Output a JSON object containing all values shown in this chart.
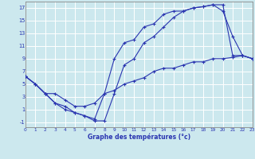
{
  "xlabel": "Graphe des températures (°c)",
  "bg_color": "#cce8ee",
  "line_color": "#2a35b0",
  "grid_color": "#ffffff",
  "x_ticks": [
    0,
    1,
    2,
    3,
    4,
    5,
    6,
    7,
    8,
    9,
    10,
    11,
    12,
    13,
    14,
    15,
    16,
    17,
    18,
    19,
    20,
    21,
    22,
    23
  ],
  "y_ticks": [
    -1,
    1,
    3,
    5,
    7,
    9,
    11,
    13,
    15,
    17
  ],
  "xlim": [
    0,
    23
  ],
  "ylim": [
    -1.8,
    18
  ],
  "line1_x": [
    0,
    1,
    2,
    3,
    4,
    5,
    6,
    7,
    8,
    9,
    10,
    11,
    12,
    13,
    14,
    15,
    16,
    17,
    18,
    19,
    20,
    21,
    22,
    23
  ],
  "line1_y": [
    6.2,
    5.0,
    3.5,
    3.5,
    2.5,
    1.5,
    1.5,
    2.0,
    3.5,
    4.0,
    5.0,
    5.5,
    6.0,
    7.0,
    7.5,
    7.5,
    8.0,
    8.5,
    8.5,
    9.0,
    9.0,
    9.2,
    9.5,
    9.0
  ],
  "line2_x": [
    0,
    1,
    2,
    3,
    4,
    5,
    6,
    7,
    8,
    9,
    10,
    11,
    12,
    13,
    14,
    15,
    16,
    17,
    18,
    19,
    20,
    21,
    22,
    23
  ],
  "line2_y": [
    6.2,
    5.0,
    3.5,
    2.0,
    1.0,
    0.5,
    0.0,
    -0.5,
    3.5,
    9.0,
    11.5,
    12.0,
    14.0,
    14.5,
    16.0,
    16.5,
    16.5,
    17.0,
    17.2,
    17.5,
    16.5,
    12.5,
    9.5,
    9.0
  ],
  "line3_x": [
    0,
    1,
    2,
    3,
    4,
    5,
    6,
    7,
    8,
    9,
    10,
    11,
    12,
    13,
    14,
    15,
    16,
    17,
    18,
    19,
    20,
    21,
    22,
    23
  ],
  "line3_y": [
    6.2,
    5.0,
    3.5,
    2.0,
    1.5,
    0.5,
    0.0,
    -0.8,
    -0.8,
    3.5,
    8.0,
    9.0,
    11.5,
    12.5,
    14.0,
    15.5,
    16.5,
    17.0,
    17.2,
    17.5,
    17.5,
    9.5,
    9.5,
    9.0
  ]
}
